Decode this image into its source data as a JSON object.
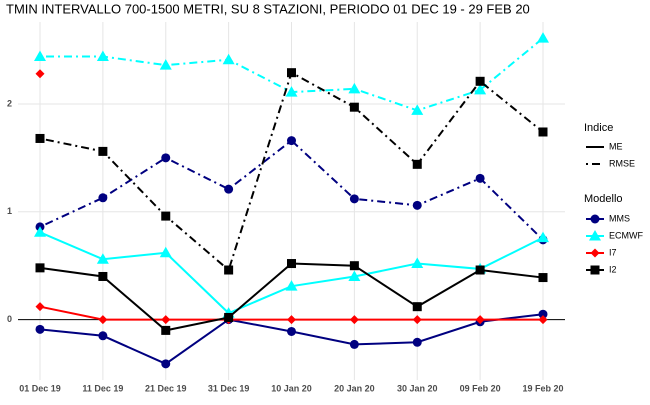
{
  "chart_data": {
    "type": "line",
    "title": "TMIN INTERVALLO 700-1500 METRI, SU 8 STAZIONI, PERIODO 01 DEC 19  -  29 FEB 20",
    "categories": [
      "01 Dec 19",
      "11 Dec 19",
      "21 Dec 19",
      "31 Dec 19",
      "10 Jan 20",
      "20 Jan 20",
      "30 Jan 20",
      "09 Feb 20",
      "19 Feb 20"
    ],
    "ylim": [
      -0.56,
      2.76
    ],
    "yticks": [
      0,
      1,
      2
    ],
    "grid": true,
    "hline": 0,
    "indices_title": "Indice",
    "indices": [
      {
        "name": "ME",
        "dash": "solid"
      },
      {
        "name": "RMSE",
        "dash": "dotdash"
      }
    ],
    "models_title": "Modello",
    "models": [
      {
        "name": "MMS",
        "color": "#000080",
        "marker": "circle",
        "values": [
          [
            -0.09,
            -0.15,
            -0.41,
            0.0,
            -0.11,
            -0.23,
            -0.21,
            -0.02,
            0.05
          ],
          [
            0.86,
            1.13,
            1.5,
            1.21,
            1.66,
            1.12,
            1.06,
            1.31,
            0.74
          ]
        ]
      },
      {
        "name": "ECMWF",
        "color": "#00ffff",
        "marker": "triangle",
        "values": [
          [
            0.81,
            0.56,
            0.62,
            0.06,
            0.31,
            0.4,
            0.52,
            0.47,
            0.76
          ],
          [
            2.44,
            2.44,
            2.36,
            2.41,
            2.11,
            2.14,
            1.94,
            2.13,
            2.61
          ]
        ]
      },
      {
        "name": "I7",
        "color": "#ff0000",
        "marker": "diamond",
        "values": [
          [
            0.12,
            0,
            0,
            0,
            0,
            0,
            0,
            0,
            0
          ],
          [
            2.28,
            null,
            null,
            null,
            null,
            null,
            null,
            null,
            null
          ]
        ]
      },
      {
        "name": "I2",
        "color": "#000000",
        "marker": "square",
        "values": [
          [
            0.48,
            0.4,
            -0.1,
            0.02,
            0.52,
            0.5,
            0.12,
            0.46,
            0.39
          ],
          [
            1.68,
            1.56,
            0.96,
            0.46,
            2.29,
            1.97,
            1.44,
            2.21,
            1.74
          ]
        ]
      }
    ]
  }
}
